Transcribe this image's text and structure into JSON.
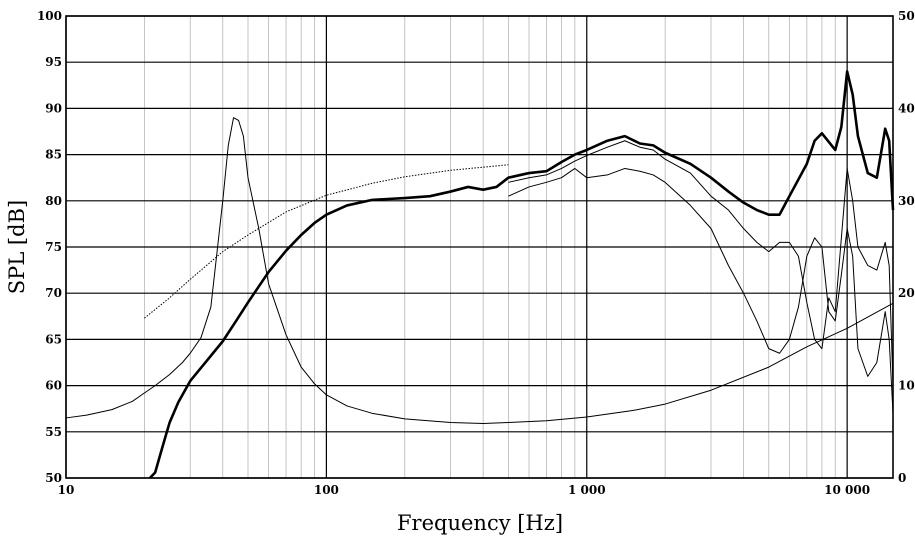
{
  "chart_data": {
    "type": "line",
    "xlabel": "Frequency [Hz]",
    "ylabel": "SPL [dB]",
    "x_scale": "log",
    "xlim": [
      10,
      15000
    ],
    "ylim": [
      50,
      100
    ],
    "y2lim": [
      0,
      50
    ],
    "grid": true,
    "legend": "none",
    "x_ticks": [
      {
        "value": 10,
        "label": "10"
      },
      {
        "value": 100,
        "label": "100"
      },
      {
        "value": 1000,
        "label": "1 000"
      },
      {
        "value": 10000,
        "label": "10 000"
      }
    ],
    "y_ticks": [
      100,
      95,
      90,
      85,
      80,
      75,
      70,
      65,
      60,
      55,
      50
    ],
    "y2_ticks": [
      50,
      40,
      30,
      20,
      10,
      0
    ],
    "series": [
      {
        "axis": "left",
        "style": "bold",
        "points": [
          [
            21,
            50
          ],
          [
            22,
            50.6
          ],
          [
            23,
            52.5
          ],
          [
            24,
            54.3
          ],
          [
            25,
            56
          ],
          [
            27,
            58.2
          ],
          [
            30,
            60.5
          ],
          [
            35,
            62.8
          ],
          [
            40,
            64.8
          ],
          [
            45,
            67
          ],
          [
            50,
            69
          ],
          [
            60,
            72.3
          ],
          [
            70,
            74.6
          ],
          [
            80,
            76.3
          ],
          [
            90,
            77.6
          ],
          [
            100,
            78.5
          ],
          [
            120,
            79.5
          ],
          [
            150,
            80.1
          ],
          [
            200,
            80.3
          ],
          [
            250,
            80.5
          ],
          [
            300,
            81
          ],
          [
            350,
            81.5
          ],
          [
            400,
            81.2
          ],
          [
            450,
            81.5
          ],
          [
            500,
            82.5
          ],
          [
            600,
            83
          ],
          [
            700,
            83.2
          ],
          [
            800,
            84.2
          ],
          [
            900,
            85
          ],
          [
            1000,
            85.5
          ],
          [
            1200,
            86.5
          ],
          [
            1400,
            87
          ],
          [
            1600,
            86.2
          ],
          [
            1800,
            86
          ],
          [
            2000,
            85.2
          ],
          [
            2500,
            84
          ],
          [
            3000,
            82.5
          ],
          [
            3500,
            81
          ],
          [
            4000,
            79.8
          ],
          [
            4500,
            79
          ],
          [
            5000,
            78.5
          ],
          [
            5500,
            78.5
          ],
          [
            6000,
            80.5
          ],
          [
            7000,
            84
          ],
          [
            7500,
            86.5
          ],
          [
            8000,
            87.3
          ],
          [
            9000,
            85.5
          ],
          [
            9500,
            88
          ],
          [
            10000,
            94
          ],
          [
            10500,
            91.5
          ],
          [
            11000,
            87
          ],
          [
            12000,
            83
          ],
          [
            13000,
            82.5
          ],
          [
            14000,
            87.8
          ],
          [
            14500,
            86.5
          ],
          [
            15000,
            79
          ]
        ]
      },
      {
        "axis": "left",
        "style": "thin",
        "points": [
          [
            500,
            82
          ],
          [
            600,
            82.5
          ],
          [
            700,
            82.8
          ],
          [
            800,
            83.5
          ],
          [
            900,
            84.3
          ],
          [
            1000,
            84.9
          ],
          [
            1200,
            85.8
          ],
          [
            1400,
            86.5
          ],
          [
            1600,
            85.8
          ],
          [
            1800,
            85.5
          ],
          [
            2000,
            84.5
          ],
          [
            2500,
            83
          ],
          [
            3000,
            80.5
          ],
          [
            3500,
            79
          ],
          [
            4000,
            77
          ],
          [
            4500,
            75.5
          ],
          [
            5000,
            74.5
          ],
          [
            5500,
            75.5
          ],
          [
            6000,
            75.5
          ],
          [
            6500,
            74
          ],
          [
            7000,
            69
          ],
          [
            7500,
            65
          ],
          [
            8000,
            64
          ],
          [
            8500,
            69.5
          ],
          [
            9000,
            68
          ],
          [
            10000,
            83.5
          ],
          [
            10500,
            80
          ],
          [
            11000,
            75
          ],
          [
            12000,
            73
          ],
          [
            13000,
            72.5
          ],
          [
            14000,
            75.5
          ],
          [
            14500,
            73
          ],
          [
            15000,
            60
          ]
        ]
      },
      {
        "axis": "left",
        "style": "thin",
        "points": [
          [
            500,
            80.5
          ],
          [
            600,
            81.5
          ],
          [
            700,
            82
          ],
          [
            800,
            82.5
          ],
          [
            900,
            83.5
          ],
          [
            1000,
            82.5
          ],
          [
            1200,
            82.8
          ],
          [
            1400,
            83.5
          ],
          [
            1600,
            83.2
          ],
          [
            1800,
            82.8
          ],
          [
            2000,
            82
          ],
          [
            2500,
            79.5
          ],
          [
            3000,
            77
          ],
          [
            3500,
            73
          ],
          [
            4000,
            70
          ],
          [
            4500,
            67
          ],
          [
            5000,
            64
          ],
          [
            5500,
            63.5
          ],
          [
            6000,
            65
          ],
          [
            6500,
            68.5
          ],
          [
            7000,
            74
          ],
          [
            7500,
            76
          ],
          [
            8000,
            75
          ],
          [
            8500,
            68
          ],
          [
            9000,
            67
          ],
          [
            9500,
            72
          ],
          [
            10000,
            77
          ],
          [
            10500,
            74
          ],
          [
            11000,
            64
          ],
          [
            12000,
            61
          ],
          [
            13000,
            62.5
          ],
          [
            14000,
            68
          ],
          [
            14500,
            65
          ],
          [
            15000,
            57
          ]
        ]
      },
      {
        "axis": "left",
        "style": "dotted",
        "points": [
          [
            20,
            67.3
          ],
          [
            25,
            69.5
          ],
          [
            30,
            71.5
          ],
          [
            40,
            74.5
          ],
          [
            50,
            76.3
          ],
          [
            70,
            78.8
          ],
          [
            100,
            80.6
          ],
          [
            150,
            81.9
          ],
          [
            200,
            82.6
          ],
          [
            300,
            83.3
          ],
          [
            500,
            83.9
          ]
        ]
      },
      {
        "axis": "right",
        "style": "thin",
        "points": [
          [
            10,
            6.5
          ],
          [
            12,
            6.8
          ],
          [
            15,
            7.4
          ],
          [
            18,
            8.3
          ],
          [
            20,
            9.2
          ],
          [
            22,
            10
          ],
          [
            25,
            11.2
          ],
          [
            28,
            12.5
          ],
          [
            30,
            13.5
          ],
          [
            33,
            15.2
          ],
          [
            36,
            18.5
          ],
          [
            40,
            30
          ],
          [
            42,
            36
          ],
          [
            44,
            39
          ],
          [
            46,
            38.7
          ],
          [
            48,
            37
          ],
          [
            50,
            32.5
          ],
          [
            55,
            27
          ],
          [
            60,
            21
          ],
          [
            70,
            15.5
          ],
          [
            80,
            12
          ],
          [
            90,
            10.2
          ],
          [
            100,
            9
          ],
          [
            120,
            7.8
          ],
          [
            150,
            7
          ],
          [
            200,
            6.4
          ],
          [
            300,
            6
          ],
          [
            400,
            5.9
          ],
          [
            500,
            6
          ],
          [
            700,
            6.2
          ],
          [
            1000,
            6.6
          ],
          [
            1500,
            7.3
          ],
          [
            2000,
            8
          ],
          [
            3000,
            9.5
          ],
          [
            5000,
            12
          ],
          [
            7000,
            14.2
          ],
          [
            10000,
            16.2
          ],
          [
            15000,
            18.9
          ]
        ]
      }
    ]
  }
}
